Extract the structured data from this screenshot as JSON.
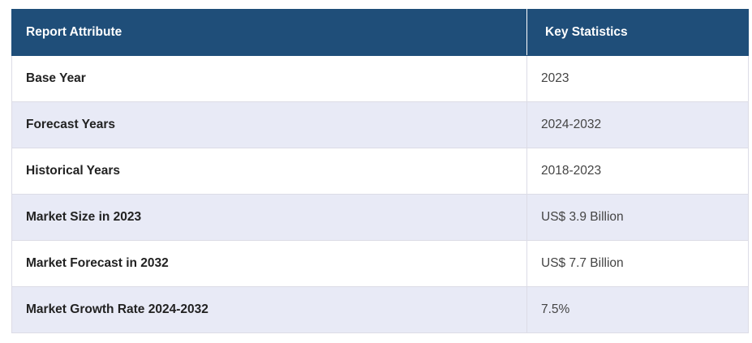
{
  "table": {
    "headers": [
      "Report Attribute",
      "Key Statistics"
    ],
    "rows": [
      {
        "attribute": "Base Year",
        "value": "2023"
      },
      {
        "attribute": "Forecast Years",
        "value": "2024-2032"
      },
      {
        "attribute": "Historical Years",
        "value": "2018-2023"
      },
      {
        "attribute": "Market Size in 2023",
        "value": "US$ 3.9 Billion"
      },
      {
        "attribute": "Market Forecast in 2032",
        "value": "US$ 7.7 Billion"
      },
      {
        "attribute": "Market Growth Rate 2024-2032",
        "value": "7.5%"
      }
    ]
  },
  "colors": {
    "header_bg": "#1f4e79",
    "stripe_bg": "#e8eaf6"
  }
}
